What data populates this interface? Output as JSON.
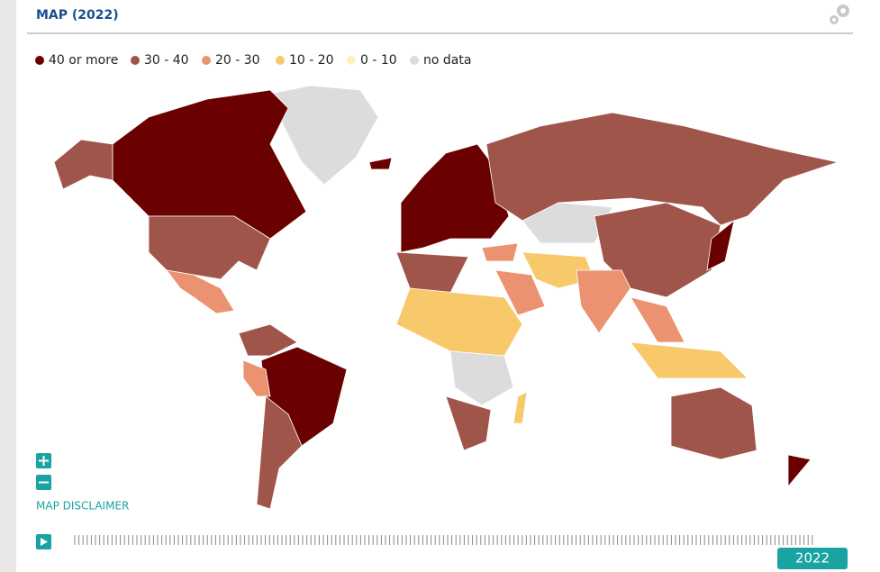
{
  "header": {
    "title": "MAP (2022)"
  },
  "legend": {
    "items": [
      {
        "label": "40 or more",
        "color": "#6b0000"
      },
      {
        "label": "30 - 40",
        "color": "#a0554a"
      },
      {
        "label": "20 - 30",
        "color": "#eb9270"
      },
      {
        "label": "10 - 20",
        "color": "#f7c96b"
      },
      {
        "label": "0 - 10",
        "color": "#fdf1c0"
      },
      {
        "label": "no data",
        "color": "#dcdcdc"
      }
    ]
  },
  "controls": {
    "disclaimer": "MAP DISCLAIMER"
  },
  "timeline": {
    "year": "2022"
  }
}
